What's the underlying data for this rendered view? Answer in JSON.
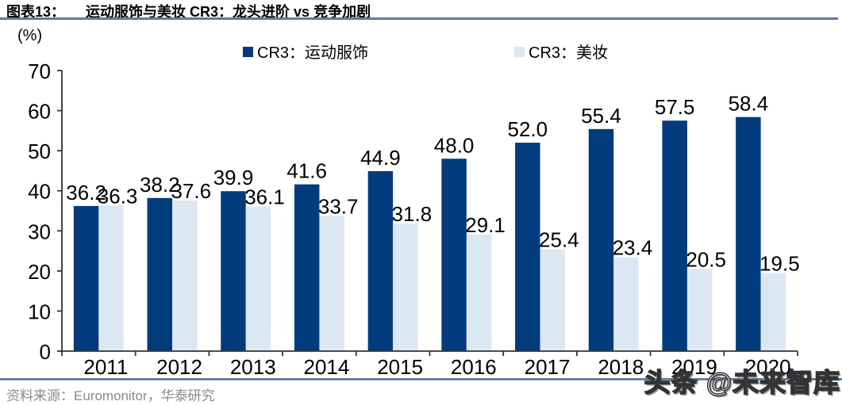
{
  "header": {
    "figure_label": "图表13：",
    "title": "运动服饰与美妆 CR3：龙头进阶 vs 竞争加剧"
  },
  "chart": {
    "unit_label": "(%)"
  },
  "chart_data": {
    "type": "bar",
    "title": "运动服饰与美妆 CR3：龙头进阶 vs 竞争加剧",
    "categories": [
      "2011",
      "2012",
      "2013",
      "2014",
      "2015",
      "2016",
      "2017",
      "2018",
      "2019",
      "2020"
    ],
    "series": [
      {
        "name": "CR3：运动服饰",
        "color": "#003C7D",
        "values": [
          36.2,
          38.2,
          39.9,
          41.6,
          44.9,
          48.0,
          52.0,
          55.4,
          57.5,
          58.4
        ]
      },
      {
        "name": "CR3：美妆",
        "color": "#DCE7F4",
        "values": [
          36.3,
          37.6,
          36.1,
          33.7,
          31.8,
          29.1,
          25.4,
          23.4,
          20.5,
          19.5
        ]
      }
    ],
    "xlabel": "",
    "ylabel": "(%)",
    "ylim": [
      0,
      70
    ],
    "ytick_step": 10,
    "grid": false,
    "legend_position": "top",
    "value_labels": true
  },
  "footer": {
    "source": "资料来源：Euromonitor，华泰研究"
  },
  "watermark": {
    "text": "头条 @未来智库"
  },
  "colors": {
    "title_underline": "#5C7CA4",
    "bottom_divider": "#6780A5",
    "axis": "#333333",
    "footer_text": "#8A8A8A"
  }
}
